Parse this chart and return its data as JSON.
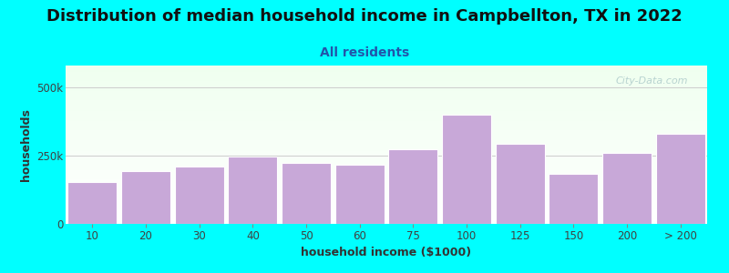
{
  "title": "Distribution of median household income in Campbellton, TX in 2022",
  "subtitle": "All residents",
  "xlabel": "household income ($1000)",
  "ylabel": "households",
  "background_color": "#00FFFF",
  "plot_bg_top": "#efffef",
  "plot_bg_bottom": "#ffffff",
  "bar_color": "#C8A8D8",
  "bar_edge_color": "#ffffff",
  "categories": [
    "10",
    "20",
    "30",
    "40",
    "50",
    "60",
    "75",
    "100",
    "125",
    "150",
    "200",
    "> 200"
  ],
  "values": [
    155000,
    195000,
    210000,
    248000,
    225000,
    218000,
    275000,
    400000,
    295000,
    185000,
    260000,
    330000
  ],
  "ylim": [
    0,
    580000
  ],
  "yticks": [
    0,
    250000,
    500000
  ],
  "ytick_labels": [
    "0",
    "250k",
    "500k"
  ],
  "watermark": "City-Data.com",
  "title_fontsize": 13,
  "subtitle_fontsize": 10,
  "label_fontsize": 9,
  "tick_fontsize": 8.5
}
